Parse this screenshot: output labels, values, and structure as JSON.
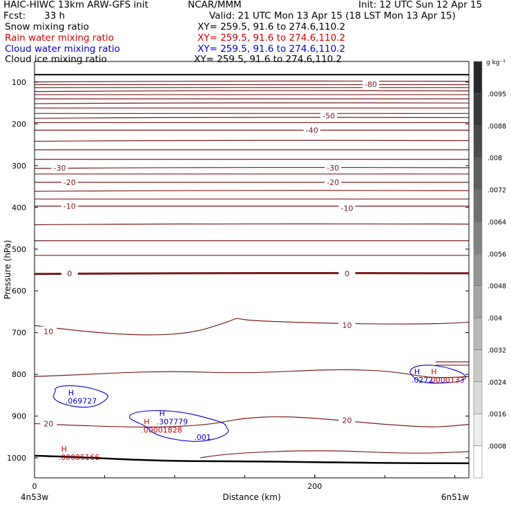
{
  "header": {
    "title_left": "HAIC-HIWC 13km ARW-GFS init",
    "org": "NCAR/MMM",
    "init": "Init: 12 UTC Sun 12 Apr 15",
    "fcst_label": "Fcst:",
    "fcst_value": "33 h",
    "valid": "Valid: 21 UTC Mon 13 Apr 15 (18 LST Mon 13 Apr 15)"
  },
  "fields": [
    {
      "name": "Snow mixing ratio",
      "xy": "XY= 259.5, 91.6 to 274.6,110.2",
      "color": "#000000"
    },
    {
      "name": "Rain water mixing ratio",
      "xy": "XY= 259.5, 91.6 to 274.6,110.2",
      "color": "#cc0000"
    },
    {
      "name": "Cloud water mixing ratio",
      "xy": "XY= 259.5, 91.6 to 274.6,110.2",
      "color": "#0000cc"
    },
    {
      "name": "Cloud ice mixing ratio",
      "xy": "XY= 259.5, 91.6 to 274.6,110.2",
      "color": "#000000"
    }
  ],
  "chart_data": {
    "type": "contour",
    "xlabel": "Distance (km)",
    "ylabel": "Pressure (hPa)",
    "xlim": [
      0,
      310
    ],
    "ylim": [
      1050,
      50
    ],
    "x_ticks": [
      "0",
      "200"
    ],
    "y_ticks": [
      100,
      200,
      300,
      400,
      500,
      600,
      700,
      800,
      900,
      1000
    ],
    "endpoints": {
      "left": "4n53w",
      "right": "6n51w"
    },
    "temperature_contours": [
      {
        "label": "-80",
        "label_x": 240,
        "p": 105
      },
      {
        "label": "-50",
        "label_x": 210,
        "p": 180
      },
      {
        "label": "-40",
        "label_x": 198,
        "p": 215
      },
      {
        "label": "-30",
        "label_x": 18,
        "p": 305
      },
      {
        "label": "-30",
        "label_x": 213,
        "p": 305
      },
      {
        "label": "-20",
        "label_x": 25,
        "p": 340
      },
      {
        "label": "-20",
        "label_x": 213,
        "p": 340
      },
      {
        "label": "-10",
        "label_x": 25,
        "p": 397
      },
      {
        "label": "-10",
        "label_x": 223,
        "p": 402
      },
      {
        "label": "0",
        "label_x": 25,
        "p": 558
      },
      {
        "label": "0",
        "label_x": 223,
        "p": 558
      },
      {
        "label": "10",
        "label_x": 10,
        "p": 697
      },
      {
        "label": "10",
        "label_x": 223,
        "p": 682
      },
      {
        "label": "20",
        "label_x": 10,
        "p": 918
      },
      {
        "label": "20",
        "label_x": 223,
        "p": 910
      }
    ],
    "extrema": [
      {
        "mark": "H",
        "value": ".069727",
        "x": 25,
        "p": 850,
        "color": "#0000cc"
      },
      {
        "mark": "H",
        "value": ".307779",
        "x": 90,
        "p": 900,
        "color": "#0000cc"
      },
      {
        "mark": "H",
        "value": ".00001828",
        "x": 79,
        "p": 920,
        "color": "#cc0000"
      },
      {
        "mark": "H",
        "value": ".00005166",
        "x": 20,
        "p": 985,
        "color": "#cc0000"
      },
      {
        "mark": "H",
        "value": ".0272",
        "x": 272,
        "p": 800,
        "color": "#0000cc"
      },
      {
        "mark": "H",
        "value": ".0000133",
        "x": 284,
        "p": 800,
        "color": "#cc0000"
      }
    ],
    "cloud_water_contour_labels": [
      {
        "value": ".001",
        "x": 114,
        "p": 950
      }
    ],
    "colorbar": {
      "unit": "g kg⁻¹",
      "ticks": [
        ".0095",
        ".0088",
        ".008",
        ".0072",
        ".0064",
        ".0056",
        ".0048",
        ".004",
        ".0032",
        ".0024",
        ".0016",
        ".0008"
      ]
    }
  }
}
